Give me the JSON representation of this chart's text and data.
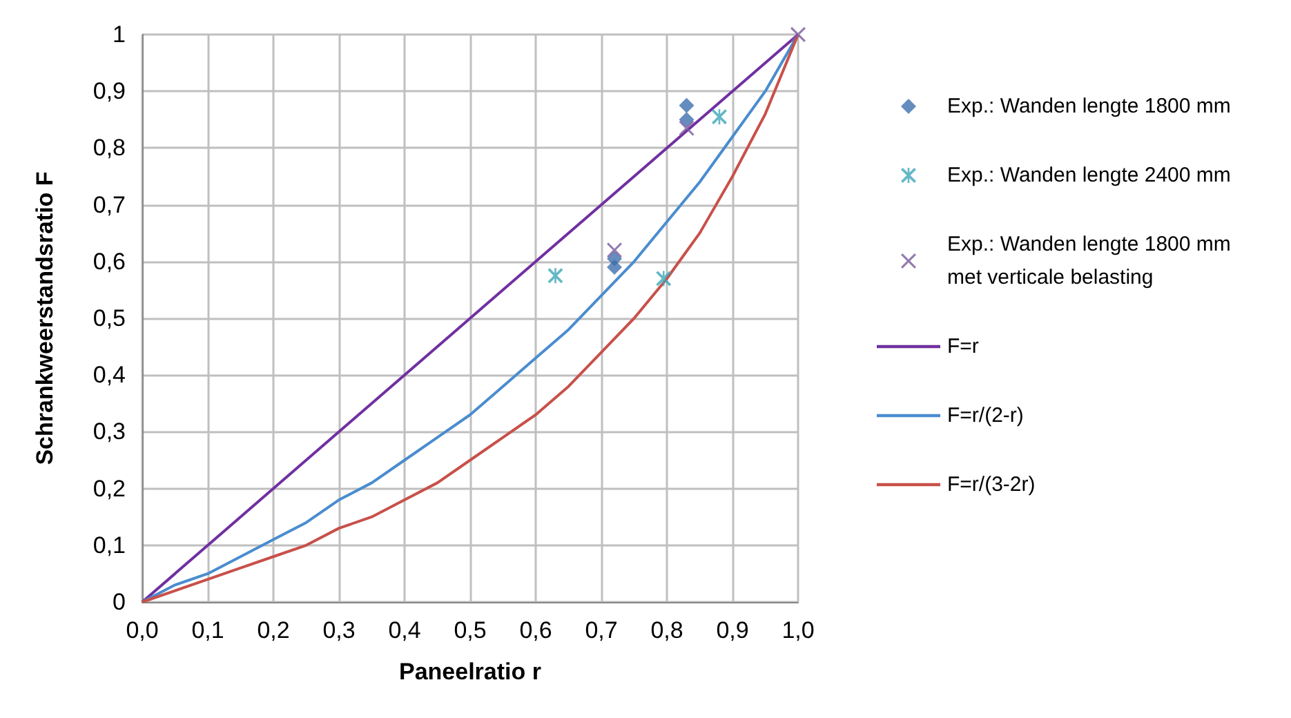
{
  "chart_data": {
    "type": "scatter",
    "xlabel": "Paneelratio r",
    "ylabel": "Schrankweerstandsratio F",
    "xlim": [
      0,
      1
    ],
    "ylim": [
      0,
      1
    ],
    "xticks": [
      {
        "value": 0,
        "label": "0,0"
      },
      {
        "value": 0.1,
        "label": "0,1"
      },
      {
        "value": 0.2,
        "label": "0,2"
      },
      {
        "value": 0.3,
        "label": "0,3"
      },
      {
        "value": 0.4,
        "label": "0,4"
      },
      {
        "value": 0.5,
        "label": "0,5"
      },
      {
        "value": 0.6,
        "label": "0,6"
      },
      {
        "value": 0.7,
        "label": "0,7"
      },
      {
        "value": 0.8,
        "label": "0,8"
      },
      {
        "value": 0.9,
        "label": "0,9"
      },
      {
        "value": 1,
        "label": "1,0"
      }
    ],
    "yticks": [
      0,
      {
        "value": 0.1,
        "label": "0,1"
      },
      {
        "value": 0.2,
        "label": "0,2"
      },
      {
        "value": 0.3,
        "label": "0,3"
      },
      {
        "value": 0.4,
        "label": "0,4"
      },
      {
        "value": 0.5,
        "label": "0,5"
      },
      {
        "value": 0.6,
        "label": "0,6"
      },
      {
        "value": 0.7,
        "label": "0,7"
      },
      {
        "value": 0.8,
        "label": "0,8"
      },
      {
        "value": 0.9,
        "label": "0,9"
      },
      1
    ],
    "grid": true,
    "legend": "right",
    "series": [
      {
        "name": "Exp.: Wanden lengte 1800 mm",
        "marker": "diamond",
        "color": "#3f6fae",
        "x": [
          0.83,
          0.83,
          0.72,
          0.72
        ],
        "values": [
          0.875,
          0.85,
          0.605,
          0.59
        ]
      },
      {
        "name": "Exp.: Wanden lengte 2400 mm",
        "marker": "star",
        "color": "#3fa6b8",
        "x": [
          0.63,
          0.795,
          0.88
        ],
        "values": [
          0.575,
          0.57,
          0.855
        ]
      },
      {
        "name": "Exp.: Wanden lengte 1800 mm met verticale belasting",
        "marker": "cross",
        "color": "#7a5a9e",
        "x": [
          0.72,
          0.83,
          1
        ],
        "values": [
          0.62,
          0.835,
          1
        ]
      },
      {
        "name": "F=r",
        "type": "line",
        "marker": "none",
        "color": "#7030a0",
        "x": [
          0,
          1
        ],
        "values": [
          0,
          1
        ]
      },
      {
        "name": "F=r/(2-r)",
        "type": "line",
        "marker": "none",
        "color": "#4a8ccf",
        "x": [
          0,
          0.05,
          0.1,
          0.15,
          0.2,
          0.25,
          0.3,
          0.35,
          0.4,
          0.45,
          0.5,
          0.55,
          0.6,
          0.65,
          0.7,
          0.75,
          0.8,
          0.85,
          0.9,
          0.95,
          0.975,
          1
        ],
        "values": [
          0,
          0.03,
          0.05,
          0.08,
          0.11,
          0.14,
          0.18,
          0.21,
          0.25,
          0.29,
          0.33,
          0.38,
          0.43,
          0.48,
          0.54,
          0.6,
          0.67,
          0.74,
          0.82,
          0.9,
          0.95,
          1
        ]
      },
      {
        "name": "F=r/(3-2r)",
        "type": "line",
        "marker": "none",
        "color": "#c8504a",
        "x": [
          0,
          0.05,
          0.1,
          0.15,
          0.2,
          0.25,
          0.3,
          0.35,
          0.4,
          0.45,
          0.5,
          0.55,
          0.6,
          0.65,
          0.7,
          0.75,
          0.8,
          0.85,
          0.9,
          0.95,
          0.975,
          1
        ],
        "values": [
          0,
          0.02,
          0.04,
          0.06,
          0.08,
          0.1,
          0.13,
          0.15,
          0.18,
          0.21,
          0.25,
          0.29,
          0.33,
          0.38,
          0.44,
          0.5,
          0.57,
          0.65,
          0.75,
          0.86,
          0.93,
          1
        ]
      }
    ]
  }
}
